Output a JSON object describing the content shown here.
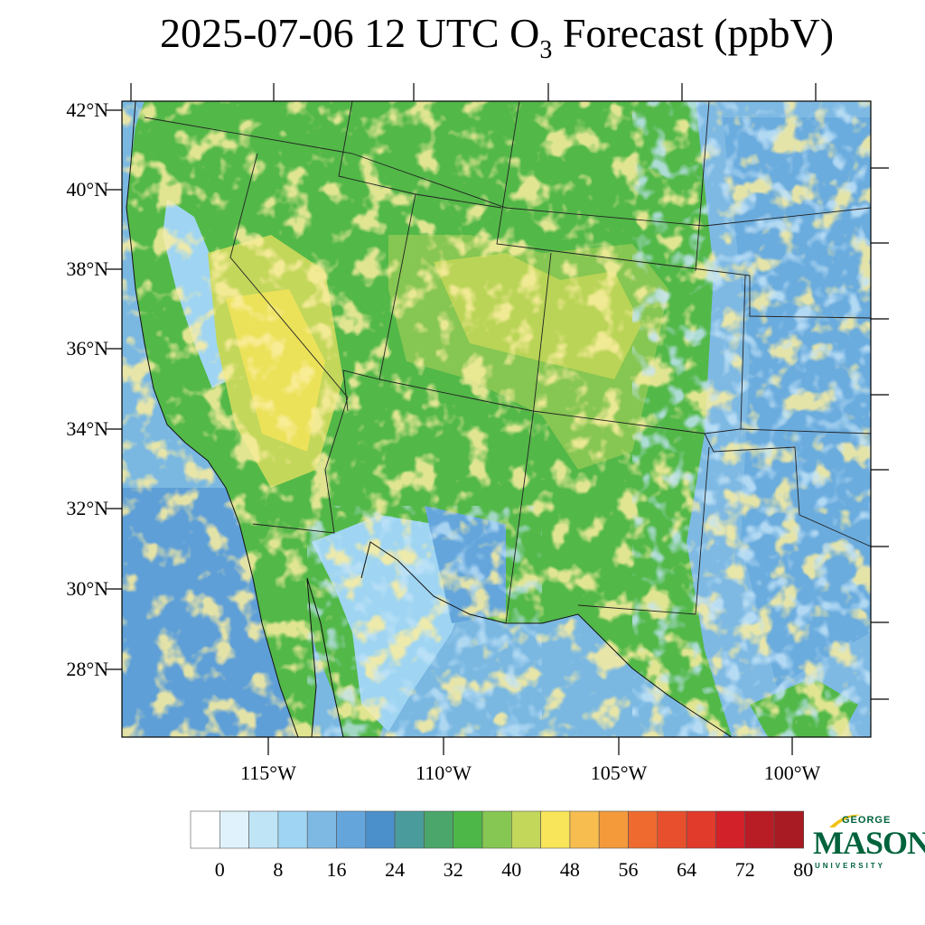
{
  "title": {
    "main": "2025-07-06 12 UTC O",
    "sub": "3",
    "suffix": " Forecast (ppbV)"
  },
  "map": {
    "lat_labels": [
      "42°N",
      "40°N",
      "38°N",
      "36°N",
      "34°N",
      "32°N",
      "30°N",
      "28°N"
    ],
    "lon_labels": [
      "115°W",
      "110°W",
      "105°W",
      "100°W"
    ],
    "ocean_color": "#7ab8e2",
    "land_base_color": "#52b848"
  },
  "colorbar": {
    "colors": [
      "#ffffff",
      "#e0f2fb",
      "#bfe4f6",
      "#9fd5f2",
      "#7eb9e3",
      "#64a6dc",
      "#4b8fcb",
      "#4a9c9c",
      "#4aa66a",
      "#4db748",
      "#86c652",
      "#c3d75b",
      "#f8e55a",
      "#f7bd4f",
      "#f49a3b",
      "#ee6a2e",
      "#e8502d",
      "#e03b2b",
      "#d32129",
      "#b81c25",
      "#a81b22",
      "#8d1317"
    ],
    "labels": [
      "0",
      "8",
      "16",
      "24",
      "32",
      "40",
      "48",
      "56",
      "64",
      "72",
      "80"
    ]
  },
  "logo": {
    "top": "GEORGE",
    "main": "MASON",
    "bottom": "UNIVERSITY",
    "color": "#00633c",
    "accent": "#f2c318"
  }
}
